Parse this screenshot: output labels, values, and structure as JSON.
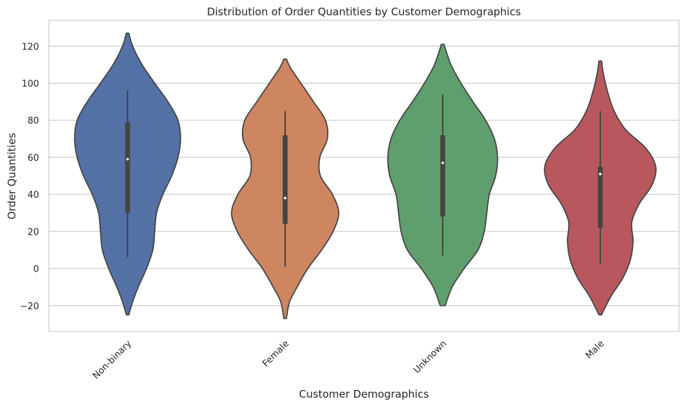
{
  "chart_data": {
    "type": "violin",
    "title": "Distribution of Order Quantities by Customer Demographics",
    "xlabel": "Customer Demographics",
    "ylabel": "Order Quantities",
    "ylim": [
      -34,
      134
    ],
    "yticks": [
      -20,
      0,
      20,
      40,
      60,
      80,
      100,
      120
    ],
    "ytick_labels": [
      "−20",
      "0",
      "20",
      "40",
      "60",
      "80",
      "100",
      "120"
    ],
    "grid": true,
    "categories": [
      "Non-binary",
      "Female",
      "Unknown",
      "Male"
    ],
    "series": [
      {
        "category": "Non-binary",
        "color": "#5471a5",
        "min": 6,
        "q1": 30,
        "median": 59,
        "q3": 79,
        "max": 96,
        "violin_min": -25,
        "violin_max": 127,
        "profile": [
          [
            -25,
            0.02
          ],
          [
            -18,
            0.08
          ],
          [
            -10,
            0.17
          ],
          [
            0,
            0.3
          ],
          [
            10,
            0.4
          ],
          [
            20,
            0.43
          ],
          [
            30,
            0.46
          ],
          [
            40,
            0.56
          ],
          [
            50,
            0.7
          ],
          [
            60,
            0.8
          ],
          [
            70,
            0.84
          ],
          [
            80,
            0.8
          ],
          [
            90,
            0.64
          ],
          [
            100,
            0.43
          ],
          [
            110,
            0.23
          ],
          [
            120,
            0.08
          ],
          [
            127,
            0.02
          ]
        ]
      },
      {
        "category": "Female",
        "color": "#cd8660",
        "min": 1,
        "q1": 24,
        "median": 38,
        "q3": 72,
        "max": 85,
        "violin_min": -27,
        "violin_max": 113,
        "profile": [
          [
            -27,
            0.02
          ],
          [
            -18,
            0.07
          ],
          [
            -10,
            0.19
          ],
          [
            0,
            0.36
          ],
          [
            10,
            0.58
          ],
          [
            20,
            0.76
          ],
          [
            30,
            0.85
          ],
          [
            40,
            0.75
          ],
          [
            50,
            0.56
          ],
          [
            60,
            0.55
          ],
          [
            70,
            0.67
          ],
          [
            80,
            0.64
          ],
          [
            90,
            0.45
          ],
          [
            100,
            0.25
          ],
          [
            108,
            0.09
          ],
          [
            113,
            0.02
          ]
        ]
      },
      {
        "category": "Unknown",
        "color": "#5f9f6d",
        "min": 7,
        "q1": 28,
        "median": 57,
        "q3": 72,
        "max": 94,
        "violin_min": -20,
        "violin_max": 121,
        "profile": [
          [
            -20,
            0.04
          ],
          [
            -10,
            0.15
          ],
          [
            0,
            0.34
          ],
          [
            10,
            0.56
          ],
          [
            20,
            0.66
          ],
          [
            30,
            0.7
          ],
          [
            40,
            0.74
          ],
          [
            50,
            0.84
          ],
          [
            60,
            0.87
          ],
          [
            70,
            0.82
          ],
          [
            80,
            0.68
          ],
          [
            90,
            0.48
          ],
          [
            100,
            0.29
          ],
          [
            110,
            0.13
          ],
          [
            121,
            0.02
          ]
        ]
      },
      {
        "category": "Male",
        "color": "#b8585e",
        "min": 2,
        "q1": 22,
        "median": 51,
        "q3": 55,
        "max": 85,
        "violin_min": -25,
        "violin_max": 112,
        "profile": [
          [
            -25,
            0.02
          ],
          [
            -15,
            0.17
          ],
          [
            -5,
            0.36
          ],
          [
            5,
            0.48
          ],
          [
            15,
            0.52
          ],
          [
            25,
            0.5
          ],
          [
            35,
            0.62
          ],
          [
            45,
            0.82
          ],
          [
            55,
            0.88
          ],
          [
            65,
            0.72
          ],
          [
            75,
            0.4
          ],
          [
            85,
            0.22
          ],
          [
            95,
            0.12
          ],
          [
            105,
            0.05
          ],
          [
            112,
            0.02
          ]
        ]
      }
    ]
  }
}
